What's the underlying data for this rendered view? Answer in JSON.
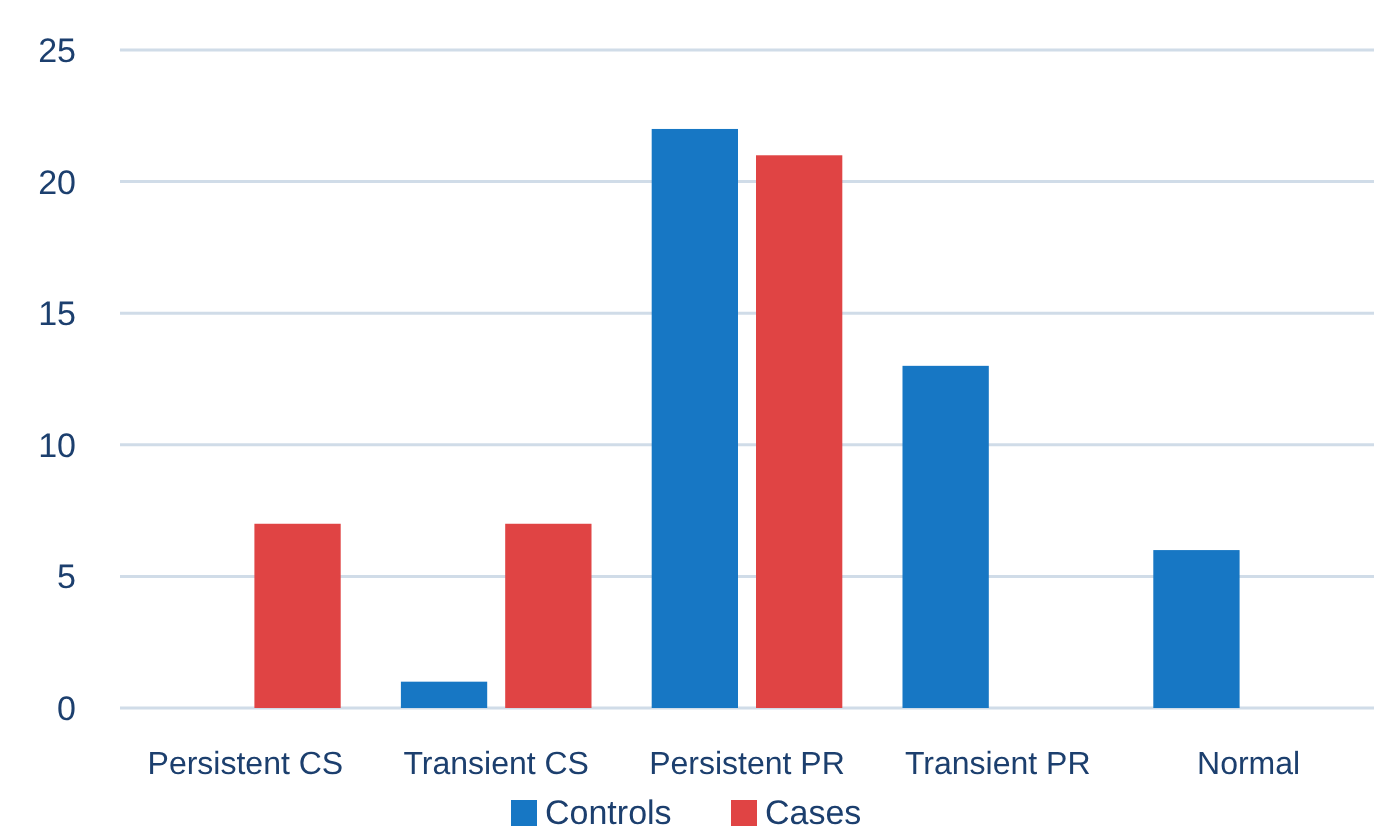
{
  "chart_data": {
    "type": "bar",
    "categories": [
      "Persistent CS",
      "Transient CS",
      "Persistent PR",
      "Transient PR",
      "Normal"
    ],
    "series": [
      {
        "name": "Controls",
        "color": "#1777c4",
        "values": [
          0,
          1,
          22,
          13,
          6
        ]
      },
      {
        "name": "Cases",
        "color": "#e04444",
        "values": [
          7,
          7,
          21,
          0,
          0
        ]
      }
    ],
    "ylim": [
      0,
      25
    ],
    "yticks": [
      0,
      5,
      10,
      15,
      20,
      25
    ],
    "grid": "y",
    "legend": "bottom"
  }
}
